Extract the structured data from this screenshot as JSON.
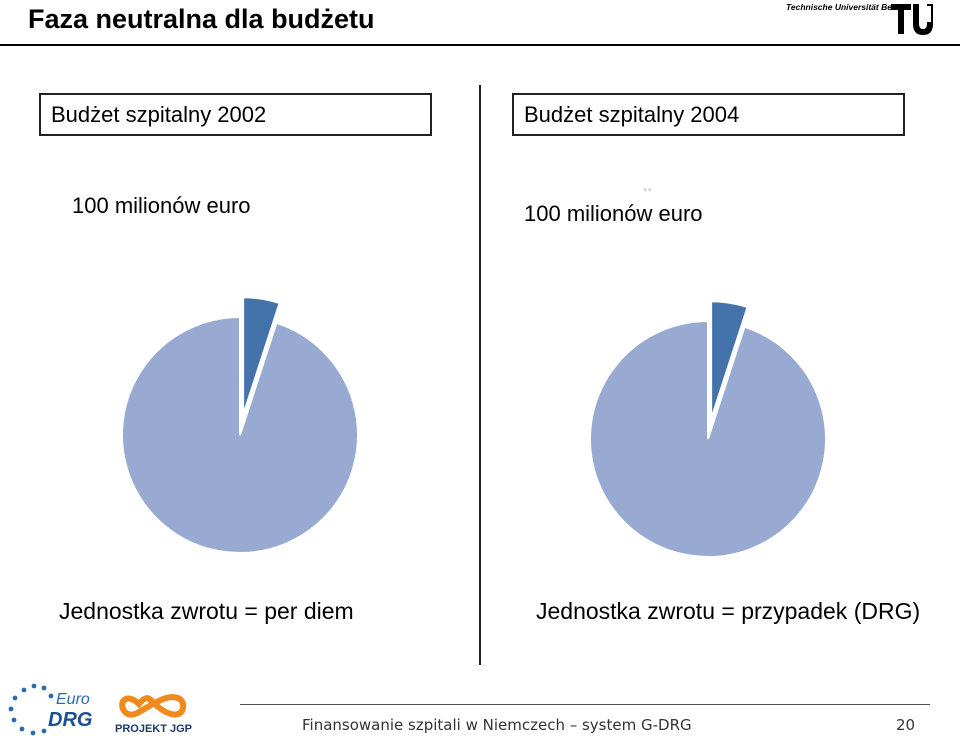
{
  "header": {
    "title": "Faza neutralna dla budżetu",
    "university": "Technische Universität Berlin"
  },
  "colors": {
    "main_slice": "#98AAD2",
    "small_slice": "#4472AA"
  },
  "left": {
    "box_label": "Budżet szpitalny 2002",
    "amount": "100 milionów euro",
    "caption": "Jednostka zwrotu = per diem"
  },
  "right": {
    "box_label": "Budżet szpitalny 2004",
    "amount": "100 milionów euro",
    "caption": "Jednostka zwrotu = przypadek (DRG)"
  },
  "chart_data": [
    {
      "type": "pie",
      "values": [
        95,
        5
      ],
      "exploded": [
        false,
        true
      ]
    },
    {
      "type": "pie",
      "values": [
        95,
        5
      ],
      "exploded": [
        false,
        true
      ]
    }
  ],
  "footer": {
    "logo_left": "Euro DRG",
    "logo_right": "PROJEKT JGP",
    "text": "Finansowanie szpitali w Niemczech – system G-DRG",
    "page": "20"
  }
}
